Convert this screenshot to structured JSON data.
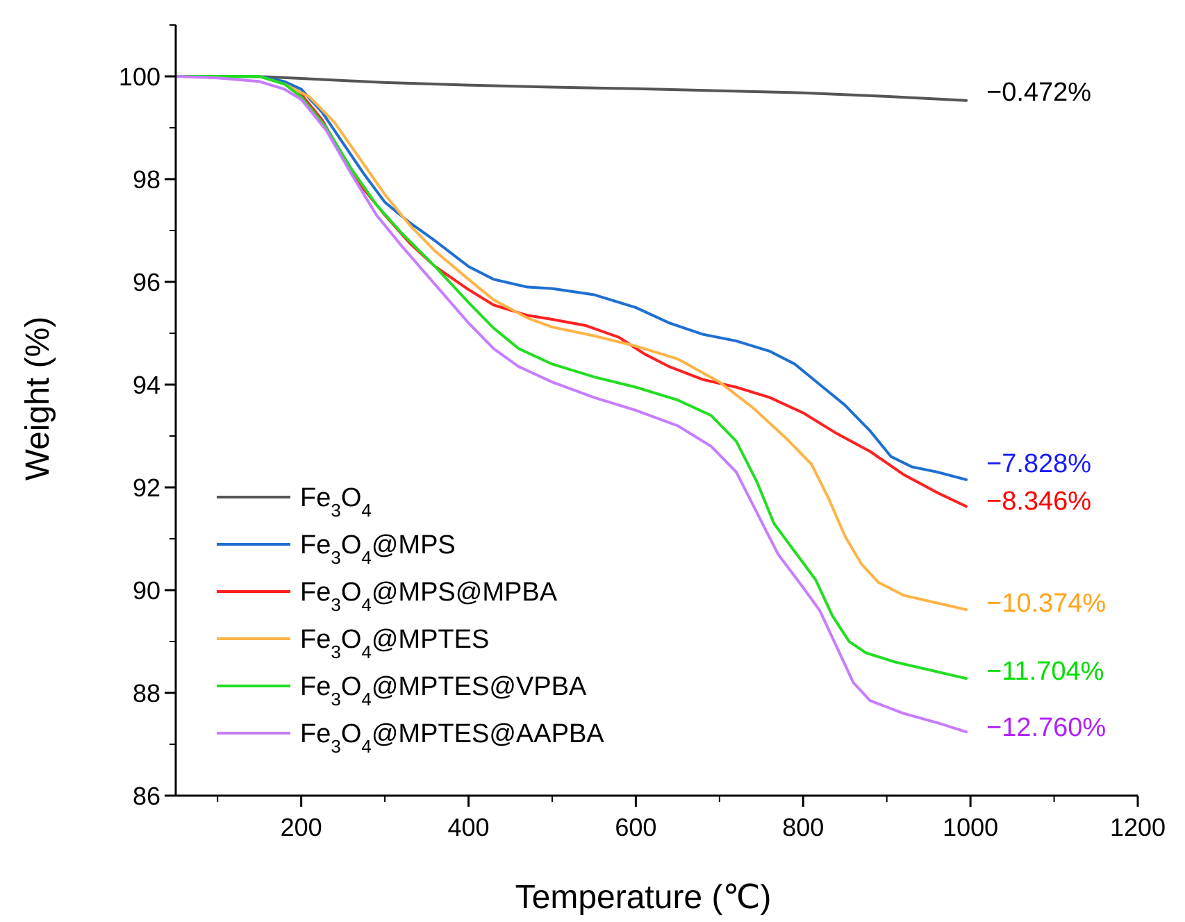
{
  "chart_data": {
    "type": "line",
    "title": "",
    "xlabel": "Temperature (℃)",
    "ylabel": "Weight (%)",
    "xlim": [
      50,
      1200
    ],
    "ylim": [
      86,
      101
    ],
    "x_ticks": [
      200,
      400,
      600,
      800,
      1000,
      1200
    ],
    "y_ticks": [
      86,
      88,
      90,
      92,
      94,
      96,
      98,
      100
    ],
    "grid": false,
    "legend_position": "bottom-left",
    "series": [
      {
        "name_parts": {
          "a": "Fe",
          "b": "3",
          "c": "O",
          "d": "4",
          "e": ""
        },
        "color": "#555555",
        "end_label": "−0.472%",
        "end_label_color": "#000000",
        "points": [
          [
            50,
            100
          ],
          [
            100,
            100
          ],
          [
            160,
            99.99
          ],
          [
            200,
            99.96
          ],
          [
            300,
            99.88
          ],
          [
            400,
            99.83
          ],
          [
            500,
            99.79
          ],
          [
            600,
            99.76
          ],
          [
            700,
            99.72
          ],
          [
            800,
            99.68
          ],
          [
            900,
            99.61
          ],
          [
            995,
            99.53
          ]
        ]
      },
      {
        "name_parts": {
          "a": "Fe",
          "b": "3",
          "c": "O",
          "d": "4",
          "e": "@MPS"
        },
        "color": "#1f6fd1",
        "end_label": "−7.828%",
        "end_label_color": "#1a1aff",
        "points": [
          [
            50,
            100
          ],
          [
            150,
            100
          ],
          [
            180,
            99.9
          ],
          [
            200,
            99.75
          ],
          [
            225,
            99.3
          ],
          [
            250,
            98.7
          ],
          [
            275,
            98.1
          ],
          [
            300,
            97.55
          ],
          [
            330,
            97.15
          ],
          [
            360,
            96.8
          ],
          [
            400,
            96.3
          ],
          [
            430,
            96.05
          ],
          [
            470,
            95.9
          ],
          [
            500,
            95.87
          ],
          [
            550,
            95.75
          ],
          [
            600,
            95.5
          ],
          [
            640,
            95.2
          ],
          [
            680,
            94.98
          ],
          [
            720,
            94.85
          ],
          [
            760,
            94.65
          ],
          [
            790,
            94.4
          ],
          [
            820,
            94
          ],
          [
            850,
            93.6
          ],
          [
            880,
            93.1
          ],
          [
            905,
            92.6
          ],
          [
            930,
            92.4
          ],
          [
            960,
            92.3
          ],
          [
            995,
            92.15
          ]
        ]
      },
      {
        "name_parts": {
          "a": "Fe",
          "b": "3",
          "c": "O",
          "d": "4",
          "e": "@MPS@MPBA"
        },
        "color": "#ff2020",
        "end_label": "−8.346%",
        "end_label_color": "#ff0000",
        "points": [
          [
            50,
            100
          ],
          [
            150,
            100
          ],
          [
            180,
            99.85
          ],
          [
            200,
            99.65
          ],
          [
            225,
            99.15
          ],
          [
            250,
            98.45
          ],
          [
            275,
            97.8
          ],
          [
            300,
            97.3
          ],
          [
            330,
            96.75
          ],
          [
            360,
            96.3
          ],
          [
            400,
            95.85
          ],
          [
            430,
            95.55
          ],
          [
            470,
            95.35
          ],
          [
            500,
            95.27
          ],
          [
            540,
            95.15
          ],
          [
            580,
            94.92
          ],
          [
            610,
            94.6
          ],
          [
            640,
            94.35
          ],
          [
            680,
            94.1
          ],
          [
            720,
            93.95
          ],
          [
            760,
            93.75
          ],
          [
            800,
            93.45
          ],
          [
            840,
            93.05
          ],
          [
            880,
            92.7
          ],
          [
            920,
            92.25
          ],
          [
            960,
            91.9
          ],
          [
            995,
            91.63
          ]
        ]
      },
      {
        "name_parts": {
          "a": "Fe",
          "b": "3",
          "c": "O",
          "d": "4",
          "e": "@MPTES"
        },
        "color": "#ffb347",
        "end_label": "−10.374%",
        "end_label_color": "#ffa31a",
        "points": [
          [
            50,
            100
          ],
          [
            150,
            100
          ],
          [
            180,
            99.85
          ],
          [
            210,
            99.6
          ],
          [
            240,
            99.1
          ],
          [
            270,
            98.4
          ],
          [
            300,
            97.7
          ],
          [
            330,
            97.1
          ],
          [
            360,
            96.6
          ],
          [
            400,
            96.05
          ],
          [
            430,
            95.65
          ],
          [
            470,
            95.3
          ],
          [
            500,
            95.12
          ],
          [
            550,
            94.95
          ],
          [
            600,
            94.75
          ],
          [
            650,
            94.5
          ],
          [
            700,
            94.05
          ],
          [
            740,
            93.55
          ],
          [
            780,
            92.95
          ],
          [
            810,
            92.45
          ],
          [
            830,
            91.8
          ],
          [
            850,
            91.05
          ],
          [
            870,
            90.5
          ],
          [
            890,
            90.15
          ],
          [
            920,
            89.9
          ],
          [
            960,
            89.75
          ],
          [
            995,
            89.62
          ]
        ]
      },
      {
        "name_parts": {
          "a": "Fe",
          "b": "3",
          "c": "O",
          "d": "4",
          "e": "@MPTES@VPBA"
        },
        "color": "#22dd22",
        "end_label": "−11.704%",
        "end_label_color": "#00dd00",
        "points": [
          [
            50,
            100
          ],
          [
            150,
            100
          ],
          [
            180,
            99.85
          ],
          [
            200,
            99.6
          ],
          [
            230,
            99.0
          ],
          [
            260,
            98.2
          ],
          [
            290,
            97.5
          ],
          [
            320,
            96.95
          ],
          [
            360,
            96.3
          ],
          [
            400,
            95.6
          ],
          [
            430,
            95.1
          ],
          [
            460,
            94.7
          ],
          [
            500,
            94.4
          ],
          [
            550,
            94.15
          ],
          [
            600,
            93.95
          ],
          [
            650,
            93.7
          ],
          [
            690,
            93.4
          ],
          [
            720,
            92.9
          ],
          [
            745,
            92.1
          ],
          [
            765,
            91.3
          ],
          [
            790,
            90.75
          ],
          [
            815,
            90.2
          ],
          [
            835,
            89.5
          ],
          [
            855,
            89
          ],
          [
            875,
            88.78
          ],
          [
            910,
            88.6
          ],
          [
            950,
            88.45
          ],
          [
            995,
            88.28
          ]
        ]
      },
      {
        "name_parts": {
          "a": "Fe",
          "b": "3",
          "c": "O",
          "d": "4",
          "e": "@MPTES@AAPBA"
        },
        "color": "#c77dff",
        "end_label": "−12.760%",
        "end_label_color": "#b020ff",
        "points": [
          [
            50,
            100
          ],
          [
            100,
            99.97
          ],
          [
            150,
            99.9
          ],
          [
            180,
            99.75
          ],
          [
            200,
            99.55
          ],
          [
            230,
            98.95
          ],
          [
            260,
            98.1
          ],
          [
            290,
            97.3
          ],
          [
            320,
            96.7
          ],
          [
            360,
            95.95
          ],
          [
            400,
            95.2
          ],
          [
            430,
            94.7
          ],
          [
            460,
            94.35
          ],
          [
            500,
            94.05
          ],
          [
            550,
            93.75
          ],
          [
            600,
            93.5
          ],
          [
            650,
            93.2
          ],
          [
            690,
            92.8
          ],
          [
            720,
            92.3
          ],
          [
            745,
            91.5
          ],
          [
            770,
            90.7
          ],
          [
            800,
            90.05
          ],
          [
            820,
            89.6
          ],
          [
            840,
            88.9
          ],
          [
            860,
            88.2
          ],
          [
            880,
            87.85
          ],
          [
            920,
            87.6
          ],
          [
            960,
            87.42
          ],
          [
            995,
            87.24
          ]
        ]
      }
    ]
  }
}
